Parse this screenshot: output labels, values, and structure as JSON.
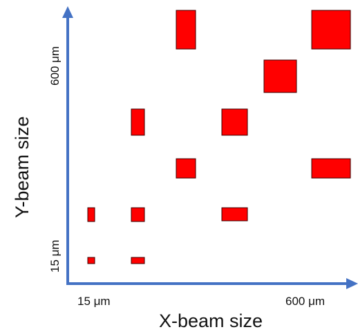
{
  "axes": {
    "x_title": "X-beam size",
    "y_title": "Y-beam size",
    "x_min_label": "15 μm",
    "x_max_label": "600 μm",
    "y_min_label": "15 μm",
    "y_max_label": "600 μm",
    "color": "#4472c4"
  },
  "beam_color": "#ff0000",
  "beam_outline": "#3a0000"
}
